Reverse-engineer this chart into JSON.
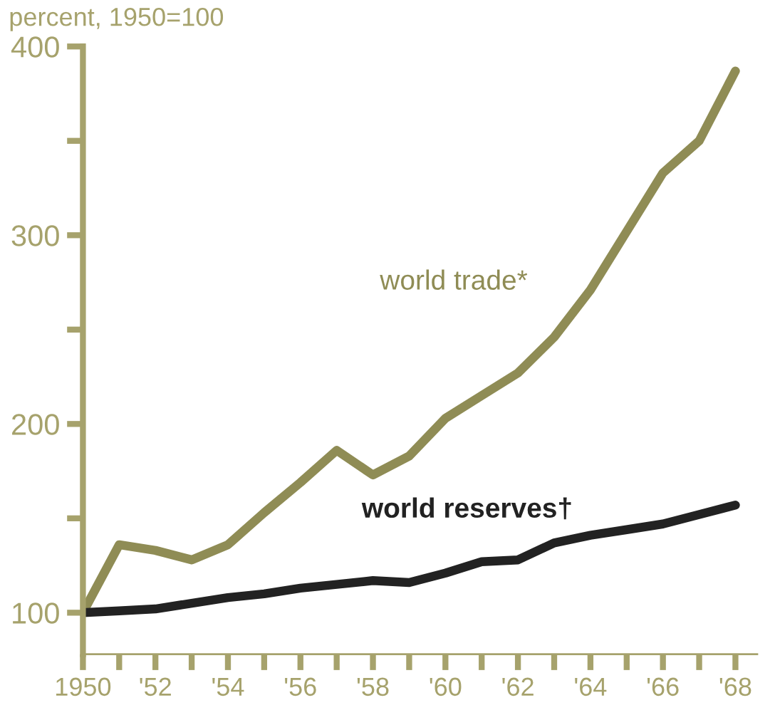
{
  "chart_data": {
    "type": "line",
    "ylabel": "percent, 1950=100",
    "x": [
      1950,
      1951,
      1952,
      1953,
      1954,
      1955,
      1956,
      1957,
      1958,
      1959,
      1960,
      1961,
      1962,
      1963,
      1964,
      1965,
      1966,
      1967,
      1968
    ],
    "series": [
      {
        "name": "world trade*",
        "color": "#8f8c55",
        "values": [
          100,
          136,
          133,
          128,
          136,
          153,
          169,
          186,
          173,
          183,
          203,
          215,
          227,
          246,
          271,
          302,
          333,
          350,
          387
        ]
      },
      {
        "name": "world reserves†",
        "color": "#222222",
        "values": [
          100,
          101,
          102,
          105,
          108,
          110,
          113,
          115,
          117,
          116,
          121,
          127,
          128,
          137,
          141,
          144,
          147,
          152,
          157
        ]
      }
    ],
    "xlim": [
      1950,
      1968.6
    ],
    "ylim": [
      78,
      400
    ],
    "xticks": [
      {
        "value": 1950,
        "label": "1950"
      },
      {
        "value": 1951,
        "label": null
      },
      {
        "value": 1952,
        "label": "'52"
      },
      {
        "value": 1953,
        "label": null
      },
      {
        "value": 1954,
        "label": "'54"
      },
      {
        "value": 1955,
        "label": null
      },
      {
        "value": 1956,
        "label": "'56"
      },
      {
        "value": 1957,
        "label": null
      },
      {
        "value": 1958,
        "label": "'58"
      },
      {
        "value": 1959,
        "label": null
      },
      {
        "value": 1960,
        "label": "'60"
      },
      {
        "value": 1961,
        "label": null
      },
      {
        "value": 1962,
        "label": "'62"
      },
      {
        "value": 1963,
        "label": null
      },
      {
        "value": 1964,
        "label": "'64"
      },
      {
        "value": 1965,
        "label": null
      },
      {
        "value": 1966,
        "label": "'66"
      },
      {
        "value": 1967,
        "label": null
      },
      {
        "value": 1968,
        "label": "'68"
      }
    ],
    "yticks": [
      100,
      {
        "value": 150,
        "label": null
      },
      200,
      {
        "value": 250,
        "label": null
      },
      300,
      {
        "value": 350,
        "label": null
      },
      400
    ],
    "grid": false,
    "legend": false,
    "marker": "none",
    "line_style": "solid"
  }
}
